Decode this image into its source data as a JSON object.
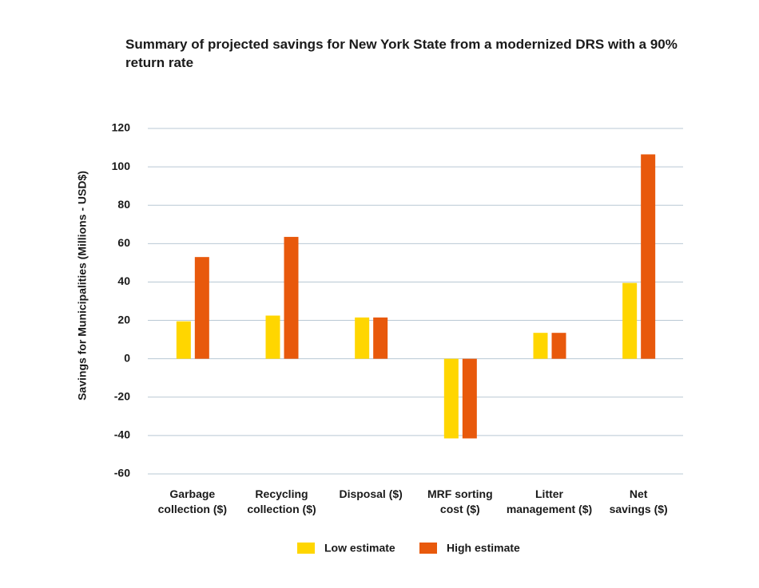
{
  "chart_data": {
    "type": "bar",
    "title": "Summary of projected savings for New York State from a modernized DRS with a 90% return rate",
    "y_label": "Savings for Municipalities (Millions - USD$)",
    "categories": [
      "Garbage\ncollection ($)",
      "Recycling\ncollection ($)",
      "Disposal ($)",
      "MRF sorting\ncost ($)",
      "Litter\nmanagement ($)",
      "Net\nsavings ($)"
    ],
    "series": [
      {
        "name": "Low estimate",
        "color": "#ffd600",
        "values": [
          19.5,
          22.5,
          21.5,
          -41.5,
          13.5,
          39.5
        ]
      },
      {
        "name": "High estimate",
        "color": "#e8590c",
        "values": [
          53,
          63.5,
          21.5,
          -41.5,
          13.5,
          106.5
        ]
      }
    ],
    "ylim": [
      -60,
      120
    ],
    "yticks": [
      -60,
      -40,
      -20,
      0,
      20,
      40,
      60,
      80,
      100,
      120
    ],
    "grid": true,
    "legend": "bottom"
  }
}
